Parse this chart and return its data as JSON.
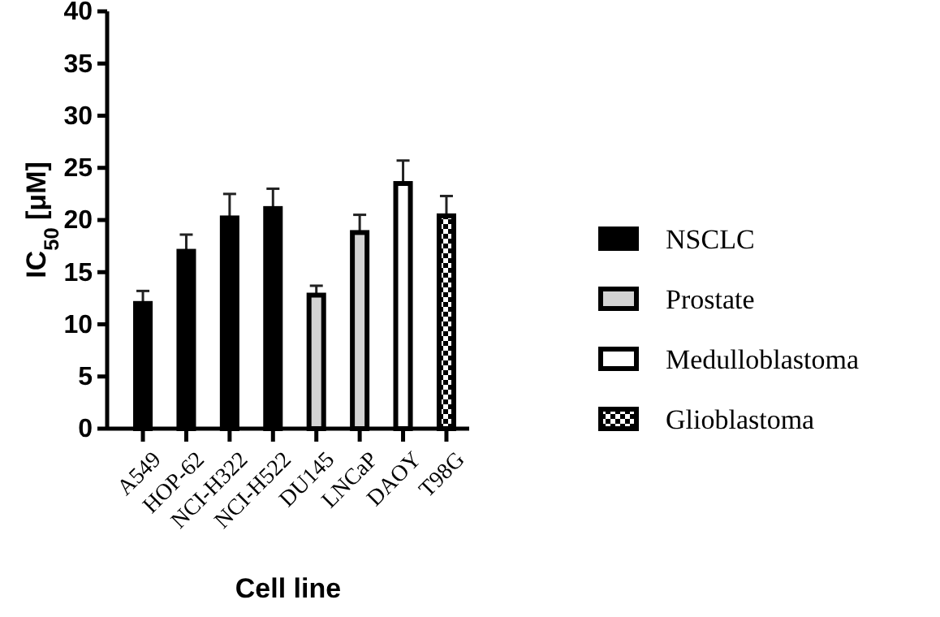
{
  "chart_data": {
    "type": "bar",
    "xlabel": "Cell line",
    "ylabel": "IC$_{50}$ [μM]",
    "categories": [
      "A549",
      "HOP-62",
      "NCI-H322",
      "NCI-H522",
      "DU145",
      "LNCaP",
      "DAOY",
      "T98G"
    ],
    "ylim": [
      0,
      40
    ],
    "yticks": [
      0,
      5,
      10,
      15,
      20,
      25,
      30,
      35,
      40
    ],
    "legend": "right",
    "grid": false,
    "series": [
      {
        "name": "NSCLC",
        "color": "#000000",
        "values": [
          12.0,
          17.0,
          20.2,
          21.1,
          null,
          null,
          null,
          null
        ],
        "errors": [
          1.2,
          1.6,
          2.3,
          1.9,
          null,
          null,
          null,
          null
        ]
      },
      {
        "name": "Prostate",
        "color": "#d3d3d3",
        "values": [
          null,
          null,
          null,
          null,
          12.8,
          18.8,
          null,
          null
        ],
        "errors": [
          null,
          null,
          null,
          null,
          0.9,
          1.7,
          null,
          null
        ]
      },
      {
        "name": "Medulloblastoma",
        "color": "#ffffff",
        "values": [
          null,
          null,
          null,
          null,
          null,
          null,
          23.5,
          null
        ],
        "errors": [
          null,
          null,
          null,
          null,
          null,
          null,
          2.2,
          null
        ]
      },
      {
        "name": "Glioblastoma",
        "color": "#000000",
        "values": [
          null,
          null,
          null,
          null,
          null,
          null,
          null,
          20.4
        ],
        "errors": [
          null,
          null,
          null,
          null,
          null,
          null,
          null,
          1.9
        ]
      }
    ]
  }
}
